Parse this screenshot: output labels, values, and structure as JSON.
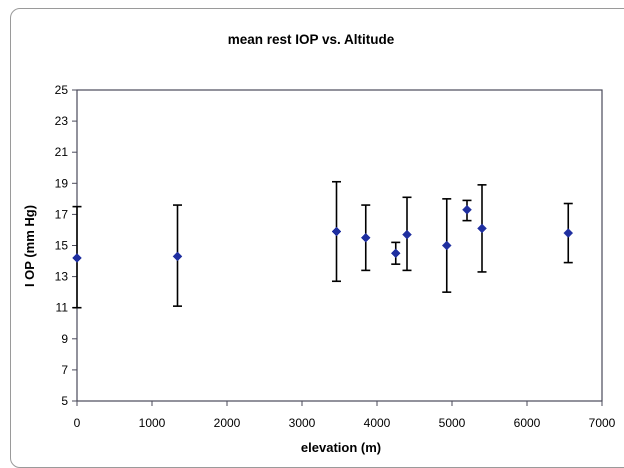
{
  "chart_data": {
    "type": "scatter",
    "title": "mean rest IOP vs. Altitude",
    "xlabel": "elevation (m)",
    "ylabel": "I OP (mm Hg)",
    "xlim": [
      0,
      7000
    ],
    "ylim": [
      5,
      25
    ],
    "xticks": [
      0,
      1000,
      2000,
      3000,
      4000,
      5000,
      6000,
      7000
    ],
    "yticks": [
      5,
      7,
      9,
      11,
      13,
      15,
      17,
      19,
      21,
      23,
      25
    ],
    "grid": false,
    "legend": false,
    "marker": "diamond",
    "colors": {
      "marker": "#1f2fa0",
      "errorbar": "#000000",
      "frame": "#4a4a5a"
    },
    "points": [
      {
        "x": 0,
        "y": 14.2,
        "err_low": 11.0,
        "err_high": 17.5
      },
      {
        "x": 1340,
        "y": 14.3,
        "err_low": 11.1,
        "err_high": 17.6
      },
      {
        "x": 3460,
        "y": 15.9,
        "err_low": 12.7,
        "err_high": 19.1
      },
      {
        "x": 3850,
        "y": 15.5,
        "err_low": 13.4,
        "err_high": 17.6
      },
      {
        "x": 4250,
        "y": 14.5,
        "err_low": 13.8,
        "err_high": 15.2
      },
      {
        "x": 4400,
        "y": 15.7,
        "err_low": 13.4,
        "err_high": 18.1
      },
      {
        "x": 4930,
        "y": 15.0,
        "err_low": 12.0,
        "err_high": 18.0
      },
      {
        "x": 5200,
        "y": 17.3,
        "err_low": 16.6,
        "err_high": 17.9
      },
      {
        "x": 5400,
        "y": 16.1,
        "err_low": 13.3,
        "err_high": 18.9
      },
      {
        "x": 6550,
        "y": 15.8,
        "err_low": 13.9,
        "err_high": 17.7
      }
    ]
  }
}
